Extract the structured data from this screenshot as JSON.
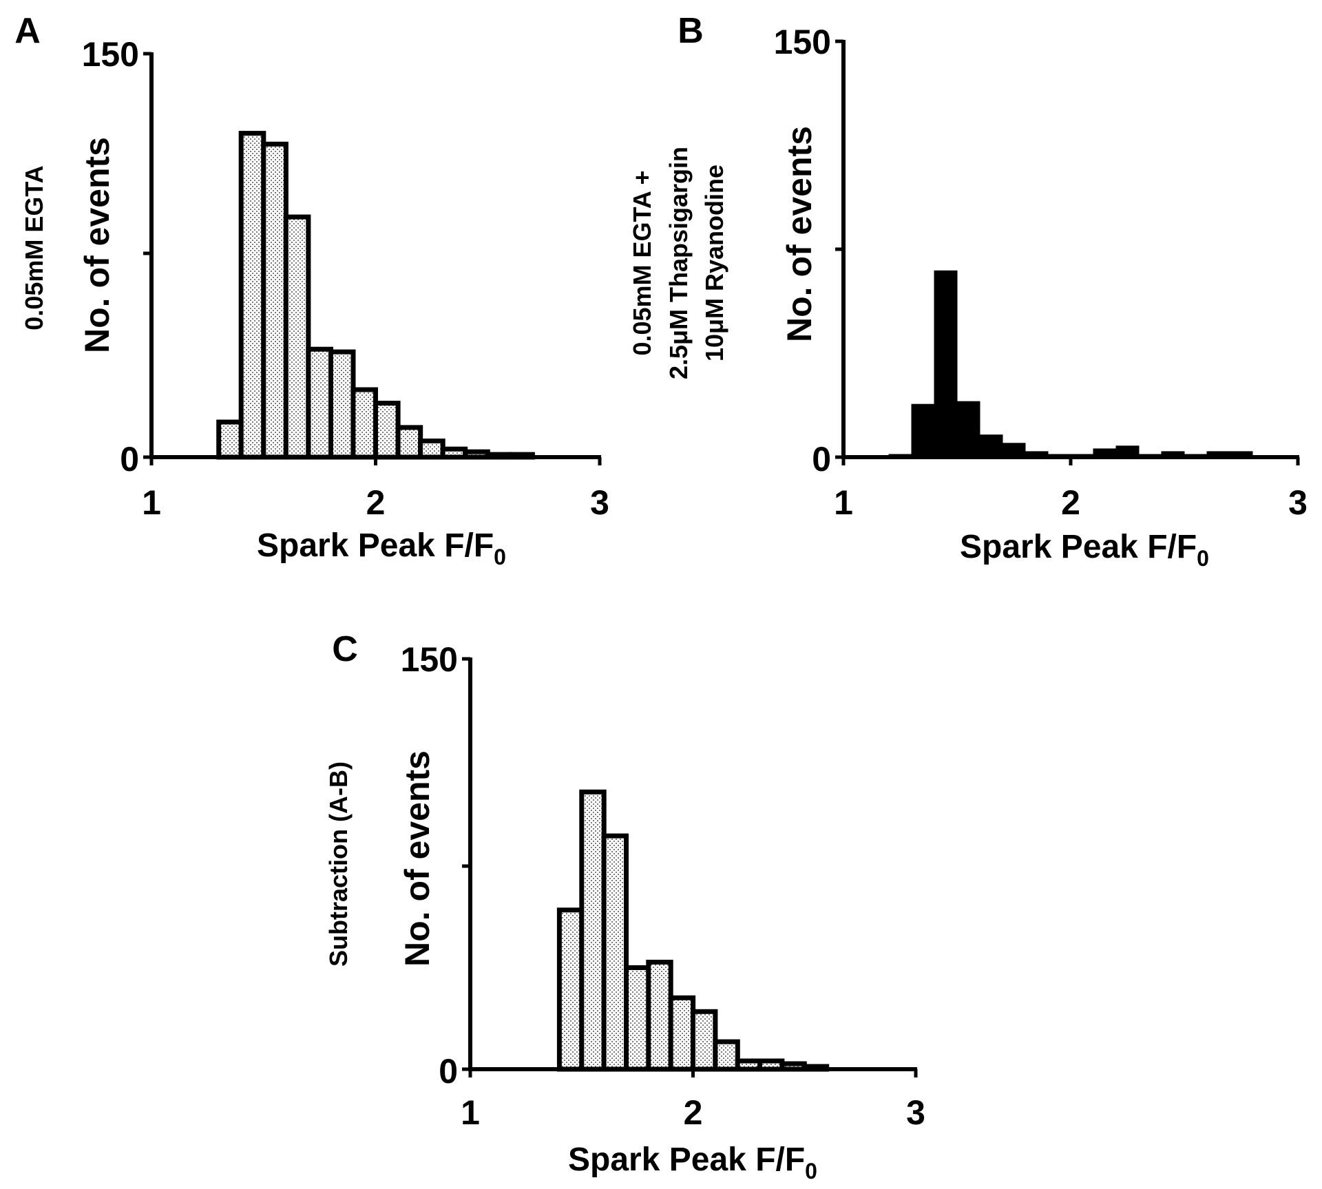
{
  "chart_data": [
    {
      "panel": "A",
      "type": "bar",
      "side_label": "0.05mM EGTA",
      "ylabel": "No. of events",
      "xlabel": "Spark Peak F/F",
      "xlabel_sub": "0",
      "x_ticks": [
        "1",
        "2",
        "3"
      ],
      "y_ticks": [
        "0",
        "150"
      ],
      "xlim": [
        1,
        3
      ],
      "ylim": [
        0,
        150
      ],
      "bin_width": 0.1,
      "fill": "stipple",
      "x": [
        1.35,
        1.45,
        1.55,
        1.65,
        1.75,
        1.85,
        1.95,
        2.05,
        2.15,
        2.25,
        2.35,
        2.45,
        2.55,
        2.65
      ],
      "values": [
        13,
        120,
        116,
        89,
        40,
        39,
        25,
        20,
        11,
        6,
        3,
        2,
        1,
        1
      ]
    },
    {
      "panel": "B",
      "type": "bar",
      "side_label": [
        "0.05mM EGTA +",
        "2.5μM Thapsigargin",
        "10μM Ryanodine"
      ],
      "ylabel": "No. of events",
      "xlabel": "Spark Peak F/F",
      "xlabel_sub": "0",
      "x_ticks": [
        "1",
        "2",
        "3"
      ],
      "y_ticks": [
        "0",
        "150"
      ],
      "xlim": [
        1,
        3
      ],
      "ylim": [
        0,
        150
      ],
      "bin_width": 0.1,
      "fill": "solid",
      "color": "#000000",
      "x": [
        1.25,
        1.35,
        1.45,
        1.55,
        1.65,
        1.75,
        1.85,
        1.95,
        2.05,
        2.15,
        2.25,
        2.35,
        2.45,
        2.55,
        2.65,
        2.75
      ],
      "values": [
        1,
        19,
        67,
        20,
        8,
        5,
        2,
        1,
        1,
        3,
        4,
        1,
        2,
        1,
        2,
        2
      ]
    },
    {
      "panel": "C",
      "type": "bar",
      "side_label": "Subtraction (A-B)",
      "ylabel": "No. of events",
      "xlabel": "Spark Peak F/F",
      "xlabel_sub": "0",
      "x_ticks": [
        "1",
        "2",
        "3"
      ],
      "y_ticks": [
        "0",
        "150"
      ],
      "xlim": [
        1,
        3
      ],
      "ylim": [
        0,
        150
      ],
      "bin_width": 0.1,
      "fill": "stipple",
      "x": [
        1.45,
        1.55,
        1.65,
        1.75,
        1.85,
        1.95,
        2.05,
        2.15,
        2.25,
        2.35,
        2.45,
        2.55
      ],
      "values": [
        58,
        101,
        85,
        37,
        39,
        26,
        21,
        10,
        3,
        3,
        2,
        1
      ]
    }
  ]
}
